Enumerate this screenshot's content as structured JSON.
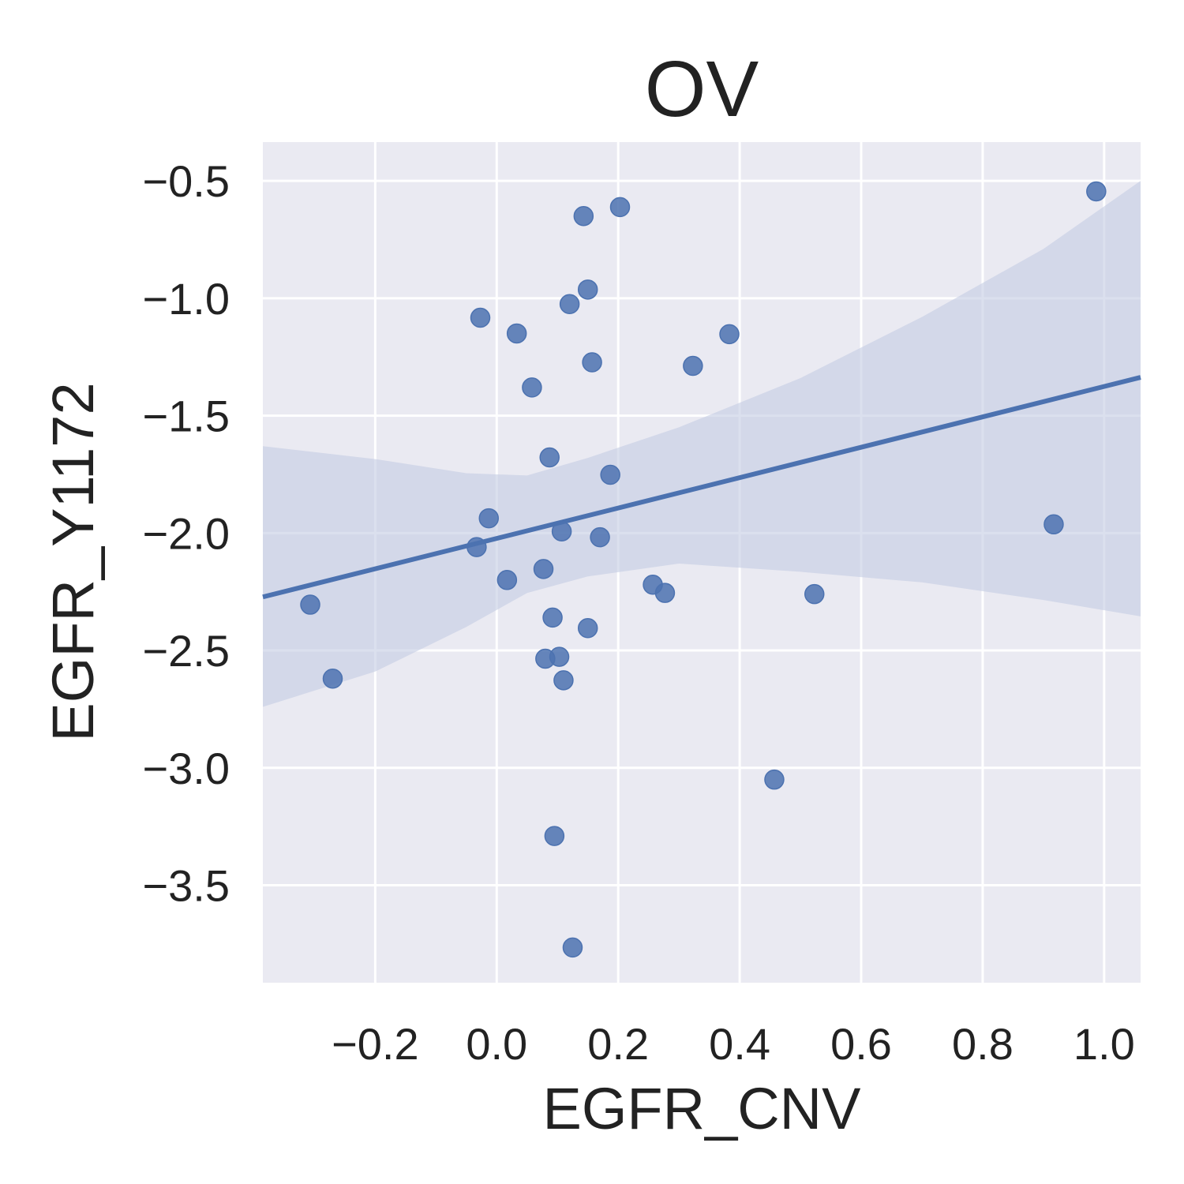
{
  "chart_data": {
    "type": "scatter",
    "title": "OV",
    "xlabel": "EGFR_CNV",
    "ylabel": "EGFR_Y1172",
    "xlim": [
      -0.385,
      1.06
    ],
    "ylim": [
      -3.915,
      -0.335
    ],
    "xticks": [
      -0.2,
      0.0,
      0.2,
      0.4,
      0.6,
      0.8,
      1.0
    ],
    "xtick_labels": [
      "−0.2",
      "0.0",
      "0.2",
      "0.4",
      "0.6",
      "0.8",
      "1.0"
    ],
    "yticks": [
      -0.5,
      -1.0,
      -1.5,
      -2.0,
      -2.5,
      -3.0,
      -3.5
    ],
    "ytick_labels": [
      "−0.5",
      "−1.0",
      "−1.5",
      "−2.0",
      "−2.5",
      "−3.0",
      "−3.5"
    ],
    "grid": true,
    "background": "#eaeaf2",
    "point_color": "#4c72b0",
    "line_color": "#4c72b0",
    "band_color": "#c3cbe2",
    "points": [
      {
        "x": 0.987,
        "y": -0.545
      },
      {
        "x": 0.203,
        "y": -0.612
      },
      {
        "x": 0.143,
        "y": -0.65
      },
      {
        "x": 0.15,
        "y": -0.963
      },
      {
        "x": 0.12,
        "y": -1.025
      },
      {
        "x": -0.027,
        "y": -1.083
      },
      {
        "x": 0.033,
        "y": -1.15
      },
      {
        "x": 0.383,
        "y": -1.153
      },
      {
        "x": 0.157,
        "y": -1.273
      },
      {
        "x": 0.323,
        "y": -1.288
      },
      {
        "x": 0.058,
        "y": -1.38
      },
      {
        "x": 0.087,
        "y": -1.678
      },
      {
        "x": 0.187,
        "y": -1.752
      },
      {
        "x": -0.013,
        "y": -1.937
      },
      {
        "x": 0.917,
        "y": -1.963
      },
      {
        "x": 0.107,
        "y": -1.993
      },
      {
        "x": 0.17,
        "y": -2.018
      },
      {
        "x": -0.033,
        "y": -2.06
      },
      {
        "x": 0.077,
        "y": -2.153
      },
      {
        "x": 0.017,
        "y": -2.2
      },
      {
        "x": 0.257,
        "y": -2.22
      },
      {
        "x": 0.277,
        "y": -2.255
      },
      {
        "x": 0.523,
        "y": -2.26
      },
      {
        "x": -0.307,
        "y": -2.305
      },
      {
        "x": 0.092,
        "y": -2.36
      },
      {
        "x": 0.15,
        "y": -2.405
      },
      {
        "x": 0.103,
        "y": -2.527
      },
      {
        "x": 0.08,
        "y": -2.535
      },
      {
        "x": 0.11,
        "y": -2.627
      },
      {
        "x": -0.27,
        "y": -2.62
      },
      {
        "x": 0.457,
        "y": -3.05
      },
      {
        "x": 0.095,
        "y": -3.29
      },
      {
        "x": 0.125,
        "y": -3.765
      }
    ],
    "regression": {
      "x0": -0.385,
      "y0": -2.272,
      "x1": 1.06,
      "y1": -1.337
    },
    "confidence_band": {
      "upper": [
        [
          -0.385,
          -1.63
        ],
        [
          -0.2,
          -1.685
        ],
        [
          -0.05,
          -1.745
        ],
        [
          0.05,
          -1.755
        ],
        [
          0.15,
          -1.68
        ],
        [
          0.3,
          -1.55
        ],
        [
          0.5,
          -1.34
        ],
        [
          0.7,
          -1.08
        ],
        [
          0.9,
          -0.79
        ],
        [
          1.06,
          -0.5
        ]
      ],
      "lower": [
        [
          -0.385,
          -2.74
        ],
        [
          -0.2,
          -2.59
        ],
        [
          -0.05,
          -2.4
        ],
        [
          0.05,
          -2.255
        ],
        [
          0.15,
          -2.185
        ],
        [
          0.3,
          -2.13
        ],
        [
          0.5,
          -2.165
        ],
        [
          0.7,
          -2.21
        ],
        [
          0.9,
          -2.285
        ],
        [
          1.06,
          -2.355
        ]
      ]
    }
  }
}
